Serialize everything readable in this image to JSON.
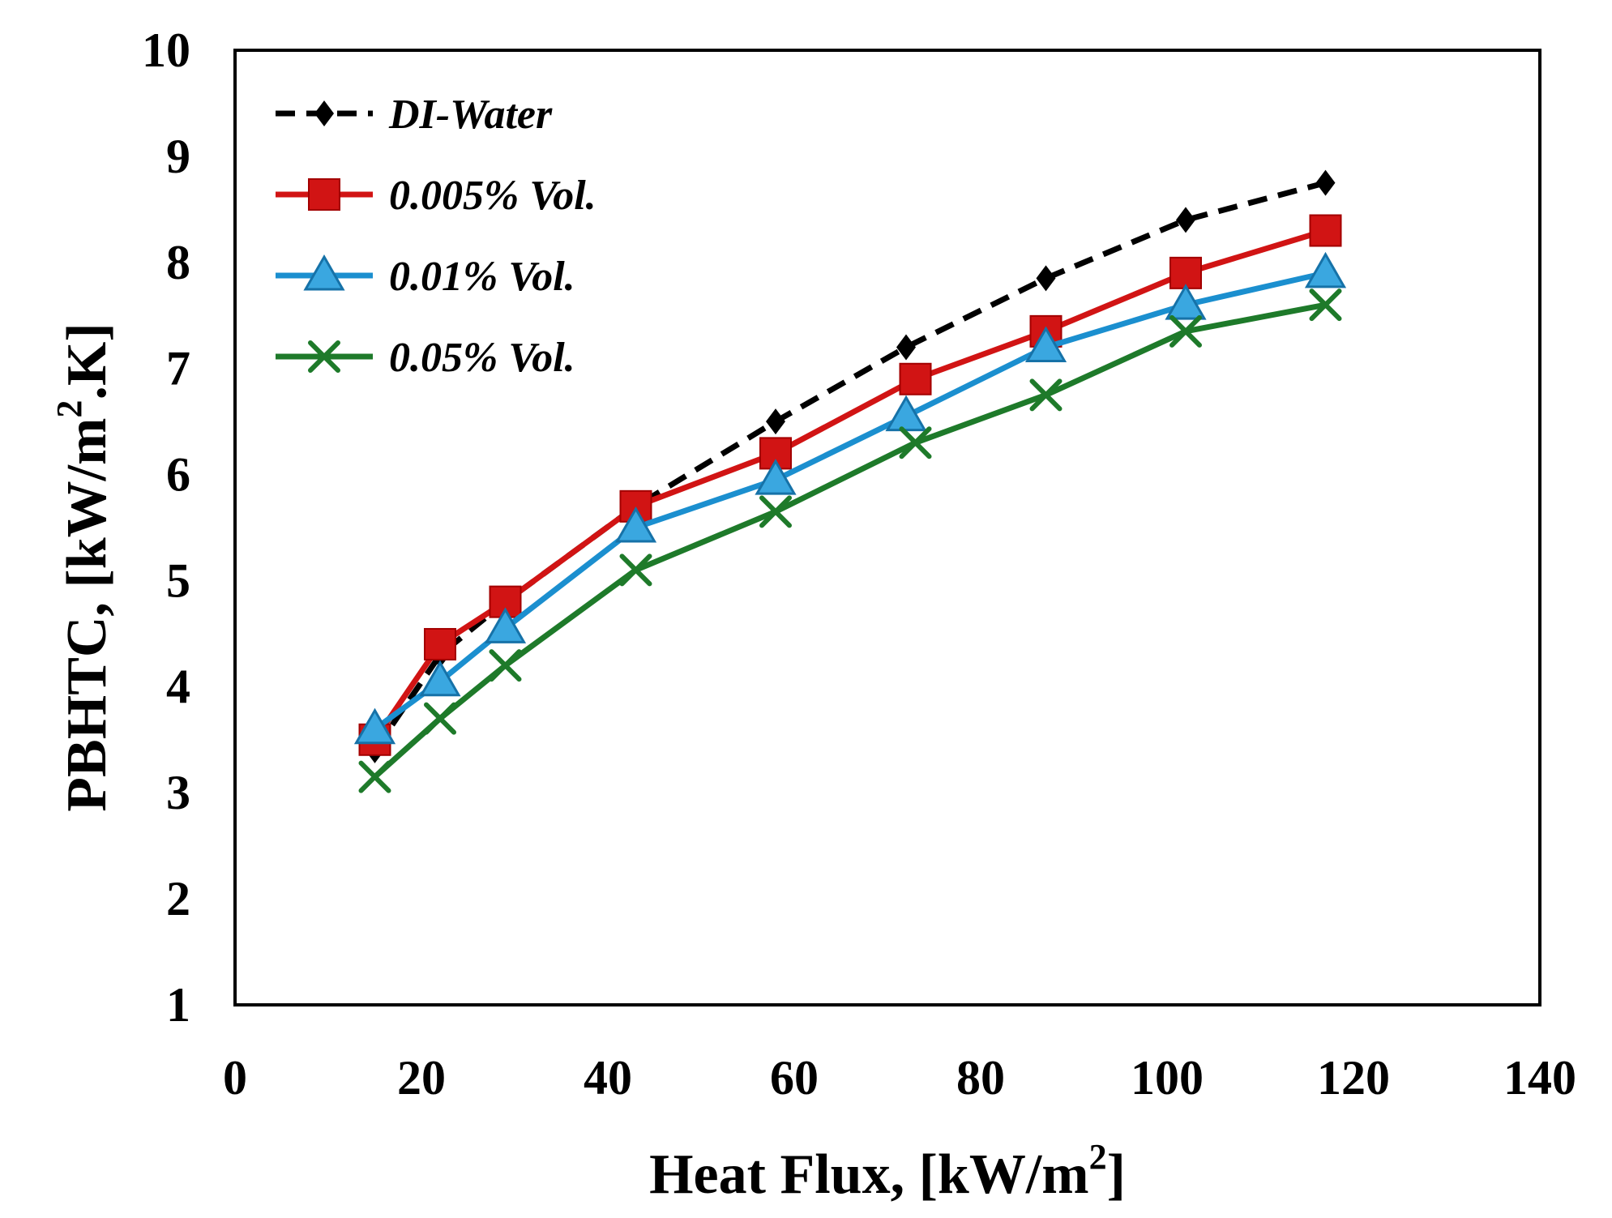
{
  "chart_data": {
    "type": "line",
    "title": "",
    "xlabel": "Heat Flux, [kW/m²]",
    "ylabel": "PBHTC, [kW/m².K]",
    "xlabel_main": "Heat Flux, [kW/m",
    "xlabel_sup": "2",
    "xlabel_end": "]",
    "ylabel_main": "PBHTC, [kW/m",
    "ylabel_sup": "2",
    "ylabel_end": ".K]",
    "xlim": [
      0,
      140
    ],
    "ylim": [
      1,
      10
    ],
    "xticks": [
      0,
      20,
      40,
      60,
      80,
      100,
      120,
      140
    ],
    "yticks": [
      1,
      2,
      3,
      4,
      5,
      6,
      7,
      8,
      9,
      10
    ],
    "grid": false,
    "legend_position": "top-left",
    "series": [
      {
        "name": "DI-Water",
        "color": "#000000",
        "dash": "dashed",
        "marker": "diamond",
        "x": [
          15,
          22,
          29,
          43,
          58,
          72,
          87,
          102,
          117
        ],
        "y": [
          3.4,
          4.3,
          4.8,
          5.7,
          6.5,
          7.2,
          7.85,
          8.4,
          8.75
        ]
      },
      {
        "name": "0.005% Vol.",
        "color": "#d11414",
        "dash": "solid",
        "marker": "square",
        "x": [
          15,
          22,
          29,
          43,
          58,
          73,
          87,
          102,
          117
        ],
        "y": [
          3.5,
          4.4,
          4.8,
          5.7,
          6.2,
          6.9,
          7.35,
          7.9,
          8.3
        ]
      },
      {
        "name": "0.01% Vol.",
        "color": "#1b8fcf",
        "dash": "solid",
        "marker": "triangle",
        "x": [
          15,
          22,
          29,
          43,
          58,
          72,
          87,
          102,
          117
        ],
        "y": [
          3.6,
          4.05,
          4.55,
          5.5,
          5.95,
          6.55,
          7.2,
          7.6,
          7.9
        ]
      },
      {
        "name": "0.05% Vol.",
        "color": "#1e7a2a",
        "dash": "solid",
        "marker": "x",
        "x": [
          15,
          22,
          29,
          43,
          58,
          73,
          87,
          102,
          117
        ],
        "y": [
          3.15,
          3.7,
          4.2,
          5.1,
          5.65,
          6.3,
          6.75,
          7.35,
          7.6
        ]
      }
    ]
  }
}
